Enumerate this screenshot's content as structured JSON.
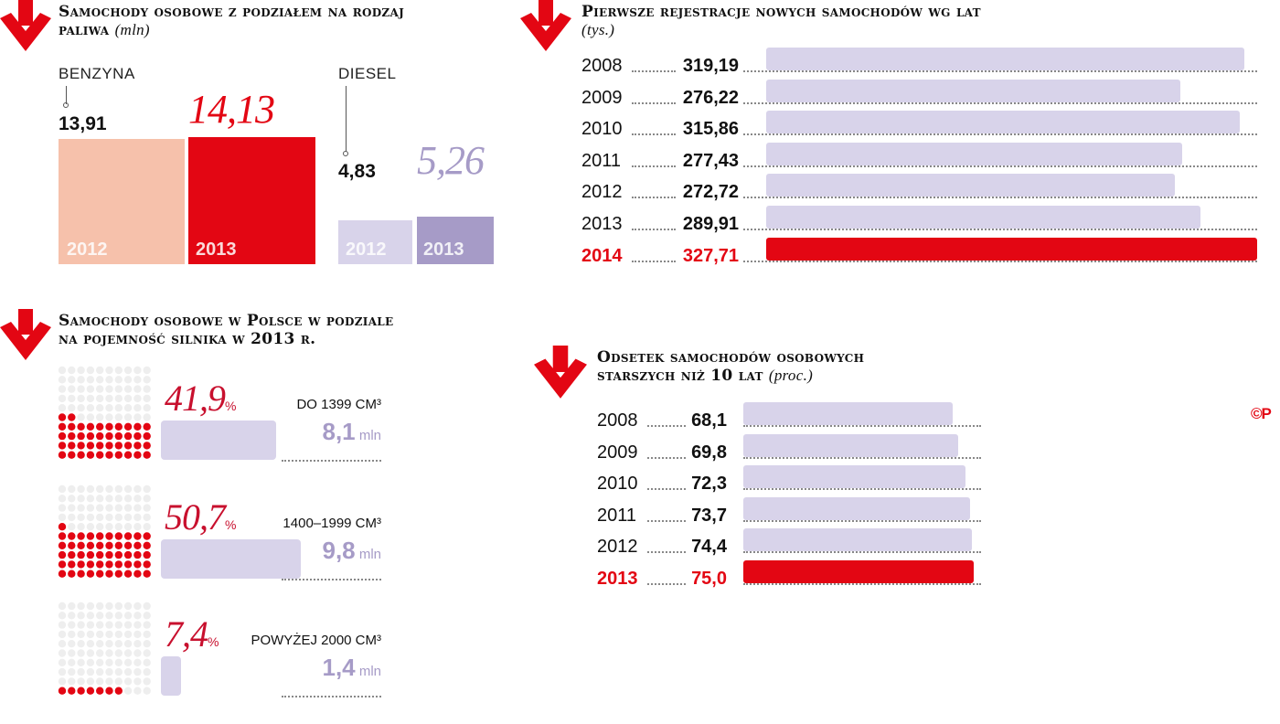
{
  "colors": {
    "red": "#e30613",
    "salmon": "#f6c1ab",
    "lavender": "#d8d3ea",
    "purple": "#a69bc7",
    "dotgray": "#eeeeee"
  },
  "copyright": "©P",
  "fuel": {
    "title": "Samochody osobowe z podziałem na rodzaj paliwa",
    "unit": "(mln)",
    "groups": [
      {
        "label": "BENZYNA",
        "bars": [
          {
            "year": "2012",
            "value": 13.91,
            "text": "13,91"
          },
          {
            "year": "2013",
            "value": 14.13,
            "text": "14,13"
          }
        ]
      },
      {
        "label": "DIESEL",
        "bars": [
          {
            "year": "2012",
            "value": 4.83,
            "text": "4,83"
          },
          {
            "year": "2013",
            "value": 5.26,
            "text": "5,26"
          }
        ]
      }
    ]
  },
  "engine": {
    "title_l1": "Samochody osobowe w Polsce w podziale",
    "title_l2": "na pojemność silnika w 2013 r.",
    "rows": [
      {
        "pct": "41,9",
        "pct_sign": "%",
        "category": "DO 1399 CM³",
        "mln": "8,1",
        "mln_unit": "mln",
        "value": 8.1,
        "share": 41.9
      },
      {
        "pct": "50,7",
        "pct_sign": "%",
        "category": "1400–1999 CM³",
        "mln": "9,8",
        "mln_unit": "mln",
        "value": 9.8,
        "share": 50.7
      },
      {
        "pct": "7,4",
        "pct_sign": "%",
        "category": "POWYŻEJ 2000 CM³",
        "mln": "1,4",
        "mln_unit": "mln",
        "value": 1.4,
        "share": 7.4
      }
    ]
  },
  "reg": {
    "title": "Pierwsze rejestracje nowych samochodów wg lat",
    "unit": "(tys.)"
  },
  "age": {
    "title_l1": "Odsetek samochodów osobowych",
    "title_l2": "starszych niż 10 lat",
    "unit": "(proc.)"
  },
  "chart_data": [
    {
      "type": "bar",
      "title": "Samochody osobowe z podziałem na rodzaj paliwa (mln)",
      "categories": [
        "2012",
        "2013"
      ],
      "series": [
        {
          "name": "BENZYNA",
          "values": [
            13.91,
            14.13
          ]
        },
        {
          "name": "DIESEL",
          "values": [
            4.83,
            5.26
          ]
        }
      ]
    },
    {
      "type": "bar",
      "title": "Pierwsze rejestracje nowych samochodów wg lat (tys.)",
      "categories": [
        "2008",
        "2009",
        "2010",
        "2011",
        "2012",
        "2013",
        "2014"
      ],
      "values": [
        319.19,
        276.22,
        315.86,
        277.43,
        272.72,
        289.91,
        327.71
      ],
      "labels": [
        "319,19",
        "276,22",
        "315,86",
        "277,43",
        "272,72",
        "289,91",
        "327,71"
      ],
      "highlight": "2014"
    },
    {
      "type": "bar",
      "title": "Samochody osobowe w Polsce w podziale na pojemność silnika w 2013 r.",
      "categories": [
        "DO 1399 CM³",
        "1400–1999 CM³",
        "POWYŻEJ 2000 CM³"
      ],
      "values": [
        8.1,
        9.8,
        1.4
      ],
      "shares": [
        41.9,
        50.7,
        7.4
      ]
    },
    {
      "type": "bar",
      "title": "Odsetek samochodów osobowych starszych niż 10 lat (proc.)",
      "categories": [
        "2008",
        "2009",
        "2010",
        "2011",
        "2012",
        "2013"
      ],
      "values": [
        68.1,
        69.8,
        72.3,
        73.7,
        74.4,
        75.0
      ],
      "labels": [
        "68,1",
        "69,8",
        "72,3",
        "73,7",
        "74,4",
        "75,0"
      ],
      "highlight": "2013"
    }
  ]
}
